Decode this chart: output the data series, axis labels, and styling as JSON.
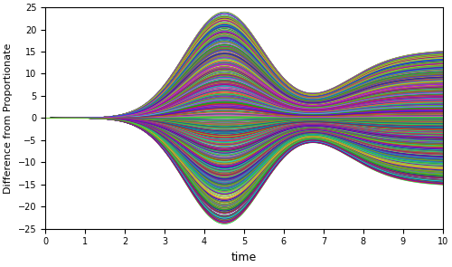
{
  "n_curves": 1000,
  "t_start": 0,
  "t_end": 10,
  "t_points": 500,
  "alpha": 0.5,
  "delta": 0.2,
  "ylim": [
    -25,
    25
  ],
  "xlim": [
    0,
    10
  ],
  "xlabel": "time",
  "ylabel": "Difference from Proportionate",
  "xticks": [
    0,
    1,
    2,
    3,
    4,
    5,
    6,
    7,
    8,
    9,
    10
  ],
  "yticks": [
    -25,
    -20,
    -15,
    -10,
    -5,
    0,
    5,
    10,
    15,
    20,
    25
  ],
  "linewidth": 0.5,
  "figsize": [
    5.0,
    2.95
  ],
  "dpi": 100,
  "seed": 42,
  "amp_scale": 24.0,
  "background": "#ffffff"
}
